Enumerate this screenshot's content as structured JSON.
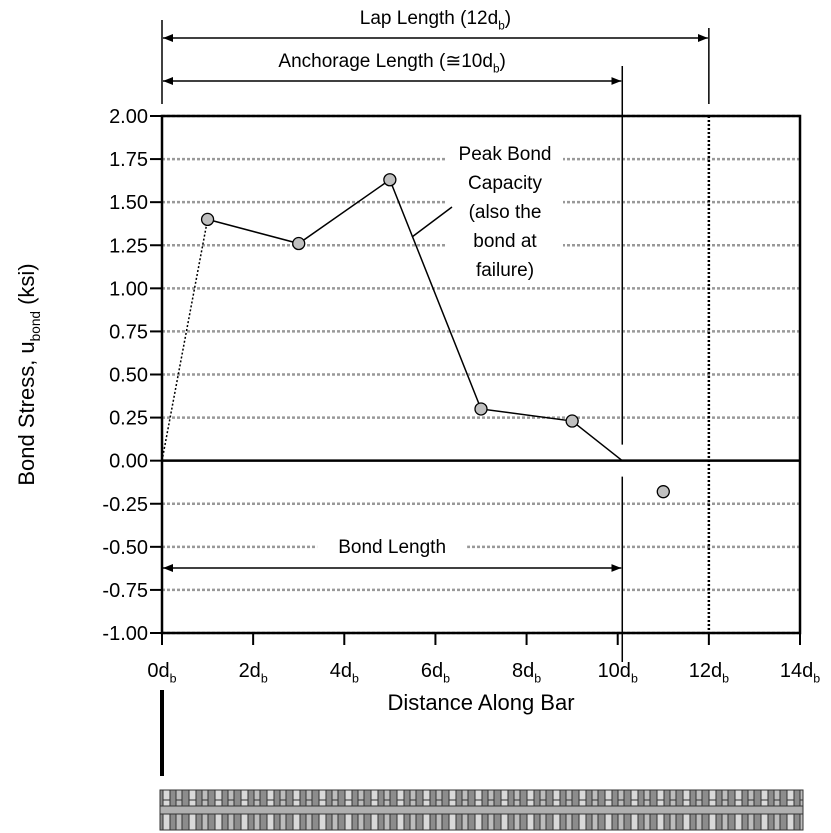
{
  "chart_data": {
    "type": "line",
    "x": [
      1,
      3,
      5,
      7,
      9,
      11
    ],
    "values": [
      1.4,
      1.26,
      1.63,
      0.3,
      0.23,
      -0.18
    ],
    "solid_line": {
      "x": [
        1,
        3,
        5,
        7,
        9,
        10.1
      ],
      "values": [
        1.4,
        1.26,
        1.63,
        0.3,
        0.23,
        0
      ]
    },
    "dotted_line": {
      "x": [
        0,
        1
      ],
      "values": [
        0,
        1.4
      ]
    },
    "xlabel": "Distance Along Bar",
    "ylabel": {
      "text": "Bond Stress, u",
      "sub": "bond",
      "tail": " (ksi)"
    },
    "xlim": [
      0,
      14
    ],
    "ylim": [
      -1,
      2
    ],
    "xticks": [
      {
        "value": 0,
        "label": "0d",
        "sub": "b"
      },
      {
        "value": 2,
        "label": "2d",
        "sub": "b"
      },
      {
        "value": 4,
        "label": "4d",
        "sub": "b"
      },
      {
        "value": 6,
        "label": "6d",
        "sub": "b"
      },
      {
        "value": 8,
        "label": "8d",
        "sub": "b"
      },
      {
        "value": 10,
        "label": "10d",
        "sub": "b"
      },
      {
        "value": 12,
        "label": "12d",
        "sub": "b"
      },
      {
        "value": 14,
        "label": "14d",
        "sub": "b"
      }
    ],
    "yticks": [
      {
        "value": -1,
        "label": "-1.00"
      },
      {
        "value": -0.75,
        "label": "-0.75"
      },
      {
        "value": -0.5,
        "label": "-0.50"
      },
      {
        "value": -0.25,
        "label": "-0.25"
      },
      {
        "value": 0,
        "label": "0.00"
      },
      {
        "value": 0.25,
        "label": "0.25"
      },
      {
        "value": 0.5,
        "label": "0.50"
      },
      {
        "value": 0.75,
        "label": "0.75"
      },
      {
        "value": 1,
        "label": "1.00"
      },
      {
        "value": 1.25,
        "label": "1.25"
      },
      {
        "value": 1.5,
        "label": "1.50"
      },
      {
        "value": 1.75,
        "label": "1.75"
      },
      {
        "value": 2,
        "label": "2.00"
      }
    ],
    "grid": true,
    "marker_color": "#c0c0c0",
    "vlines": [
      {
        "x": 10.1,
        "style": "solid"
      },
      {
        "x": 12,
        "style": "dotted"
      }
    ],
    "annotations": [
      {
        "text": "Lap Length (12d",
        "sub": "b",
        "tail": ")",
        "x": [
          0,
          12
        ],
        "level": "top"
      },
      {
        "text": "Anchorage Length (≅10d",
        "sub": "b",
        "tail": ")",
        "x": [
          0,
          10.1
        ],
        "level": "middle"
      },
      {
        "text": "Bond Length",
        "x": [
          0,
          10.1
        ],
        "level": "bottom"
      }
    ],
    "peak_note": [
      "Peak Bond",
      "Capacity",
      "(also the",
      "bond at",
      "failure)"
    ]
  }
}
